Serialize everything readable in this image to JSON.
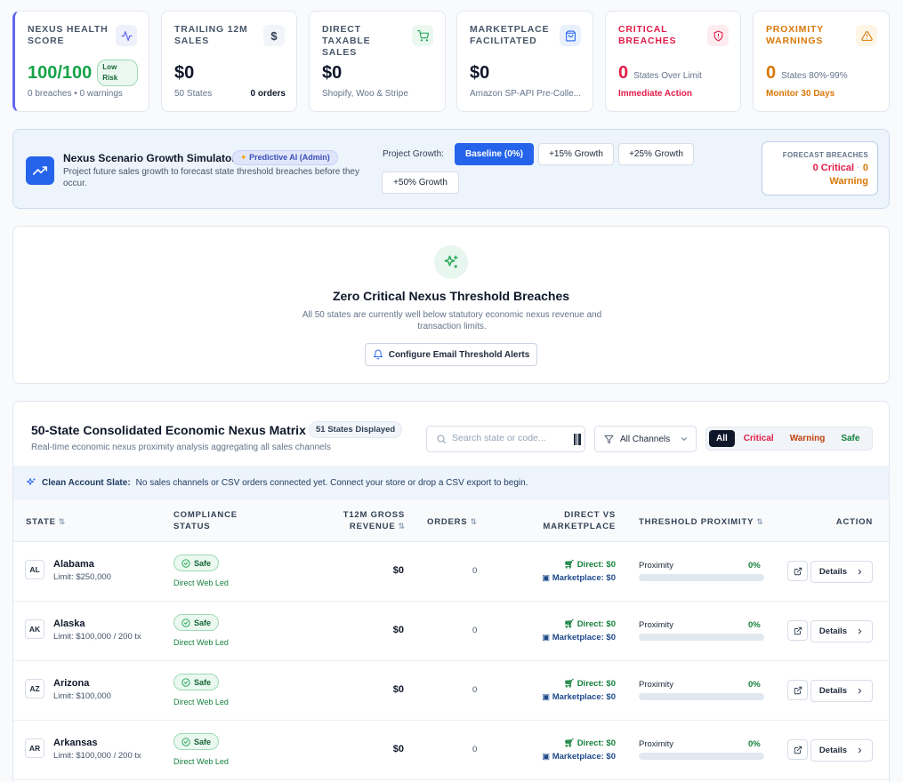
{
  "kpis": [
    {
      "label": "Nexus Health Score",
      "value": "100/100",
      "badge": "Low Risk",
      "sub": "0 breaches • 0 warnings",
      "icon": "activity-icon",
      "accent": "#16a34a"
    },
    {
      "label": "Trailing 12M Sales",
      "value": "$0",
      "sub": "50 States",
      "sub_right": "0 orders",
      "icon": "dollar-icon"
    },
    {
      "label": "Direct Taxable Sales",
      "value": "$0",
      "sub": "Shopify, Woo & Stripe",
      "icon": "cart-icon"
    },
    {
      "label": "Marketplace Facilitated",
      "value": "$0",
      "sub": "Amazon SP-API Pre-Colle...",
      "icon": "bag-icon"
    },
    {
      "label": "Critical Breaches",
      "value": "0",
      "inline_sub": "States Over Limit",
      "action": "Immediate Action",
      "icon": "shield-alert-icon",
      "accent": "#e11d48"
    },
    {
      "label": "Proximity Warnings",
      "value": "0",
      "inline_sub": "States 80%-99%",
      "action": "Monitor 30 Days",
      "icon": "warning-icon",
      "accent": "#d97706"
    }
  ],
  "simulator": {
    "title": "Nexus Scenario Growth Simulator",
    "badge": "Predictive AI (Admin)",
    "description": "Project future sales growth to forecast state threshold breaches before they occur.",
    "project_label": "Project Growth:",
    "options": [
      "Baseline (0%)",
      "+15% Growth",
      "+25% Growth",
      "+50% Growth"
    ],
    "active_option": "Baseline (0%)",
    "forecast_label": "FORECAST BREACHES",
    "forecast_critical": "0 Critical",
    "forecast_sep": "·",
    "forecast_warning_num": "0",
    "forecast_warning": "Warning"
  },
  "zero_panel": {
    "title": "Zero Critical Nexus Threshold Breaches",
    "description": "All 50 states are currently well below statutory economic nexus revenue and transaction limits.",
    "button": "Configure Email Threshold Alerts"
  },
  "matrix": {
    "title": "50-State Consolidated Economic Nexus Matrix",
    "badge": "51 States Displayed",
    "subtitle": "Real-time economic nexus proximity analysis aggregating all sales channels",
    "search_placeholder": "Search state or code...",
    "channel_filter": "All Channels",
    "filters": [
      "All",
      "Critical",
      "Warning",
      "Safe"
    ],
    "active_filter": "All",
    "notice_bold": "Clean Account Slate:",
    "notice_text": "No sales channels or CSV orders connected yet. Connect your store or drop a CSV export to begin.",
    "columns": {
      "state": "State",
      "compliance": "Compliance Status",
      "revenue": "T12M Gross Revenue",
      "orders": "Orders",
      "dvm": "Direct vs Marketplace",
      "proximity": "Threshold Proximity",
      "action": "Action"
    },
    "rows": [
      {
        "abbr": "AL",
        "name": "Alabama",
        "limit": "Limit: $250,000",
        "status": "Safe",
        "status_sub": "Direct Web Led",
        "revenue": "$0",
        "orders": "0",
        "direct": "Direct: $0",
        "marketplace": "Marketplace: $0",
        "prox_label": "Proximity",
        "prox_value": "0%",
        "prox_fraction": 0,
        "details": "Details"
      },
      {
        "abbr": "AK",
        "name": "Alaska",
        "limit": "Limit: $100,000 / 200 tx",
        "status": "Safe",
        "status_sub": "Direct Web Led",
        "revenue": "$0",
        "orders": "0",
        "direct": "Direct: $0",
        "marketplace": "Marketplace: $0",
        "prox_label": "Proximity",
        "prox_value": "0%",
        "prox_fraction": 0,
        "details": "Details"
      },
      {
        "abbr": "AZ",
        "name": "Arizona",
        "limit": "Limit: $100,000",
        "status": "Safe",
        "status_sub": "Direct Web Led",
        "revenue": "$0",
        "orders": "0",
        "direct": "Direct: $0",
        "marketplace": "Marketplace: $0",
        "prox_label": "Proximity",
        "prox_value": "0%",
        "prox_fraction": 0,
        "details": "Details"
      },
      {
        "abbr": "AR",
        "name": "Arkansas",
        "limit": "Limit: $100,000 / 200 tx",
        "status": "Safe",
        "status_sub": "Direct Web Led",
        "revenue": "$0",
        "orders": "0",
        "direct": "Direct: $0",
        "marketplace": "Marketplace: $0",
        "prox_label": "Proximity",
        "prox_value": "0%",
        "prox_fraction": 0,
        "details": "Details"
      }
    ]
  },
  "colors": {
    "primary": "#2563eb",
    "safe": "#16a34a",
    "critical": "#e11d48",
    "warning": "#d97706",
    "health_accent": "#6366f1"
  }
}
